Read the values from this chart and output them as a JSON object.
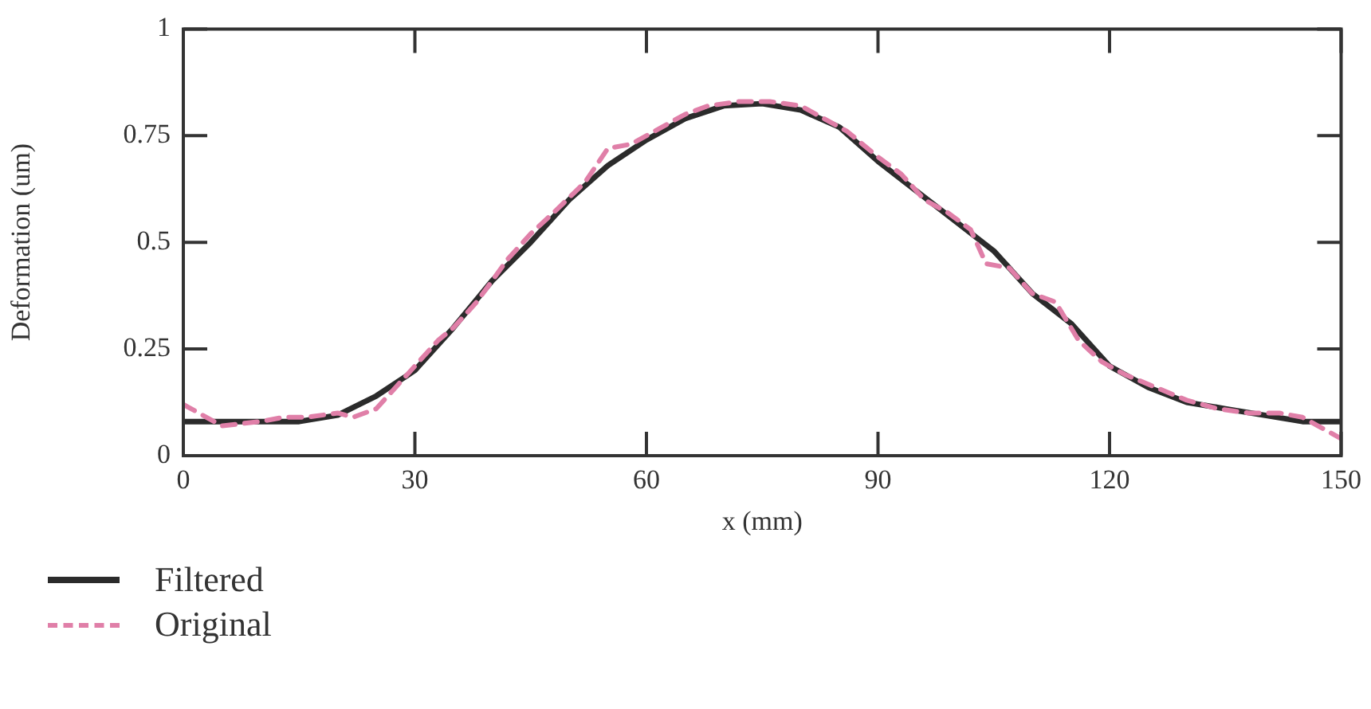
{
  "chart_data": {
    "type": "line",
    "xlabel": "x (mm)",
    "ylabel": "Deformation (um)",
    "xlim": [
      0,
      150
    ],
    "xticks": [
      0,
      30,
      60,
      90,
      120,
      150
    ],
    "ylim": [
      0,
      1
    ],
    "yticks": [
      0,
      0.25,
      0.5,
      0.75,
      1
    ],
    "grid": false,
    "legend": "bottom left",
    "marker": "none",
    "series": [
      {
        "name": "Filtered",
        "color": "#2b2b2b",
        "line_style": "solid",
        "x": [
          0,
          5,
          10,
          15,
          20,
          25,
          30,
          35,
          40,
          45,
          50,
          55,
          60,
          65,
          70,
          75,
          80,
          85,
          90,
          95,
          100,
          105,
          110,
          115,
          120,
          125,
          130,
          135,
          140,
          145,
          150
        ],
        "values": [
          0.08,
          0.08,
          0.08,
          0.08,
          0.095,
          0.14,
          0.2,
          0.3,
          0.41,
          0.5,
          0.6,
          0.68,
          0.74,
          0.79,
          0.82,
          0.825,
          0.81,
          0.77,
          0.69,
          0.62,
          0.55,
          0.48,
          0.38,
          0.31,
          0.21,
          0.16,
          0.125,
          0.11,
          0.095,
          0.08,
          0.08
        ]
      },
      {
        "name": "Original",
        "color": "#e07fa8",
        "line_style": "dashed",
        "x": [
          0,
          2,
          5,
          10,
          13,
          16,
          20,
          22,
          25,
          28,
          30,
          33,
          35,
          38,
          42,
          45,
          48,
          52,
          55,
          58,
          62,
          65,
          68,
          72,
          76,
          80,
          83,
          86,
          90,
          93,
          96,
          99,
          102,
          104,
          107,
          110,
          113,
          116,
          119,
          122,
          126,
          130,
          134,
          138,
          142,
          145,
          147,
          150
        ],
        "values": [
          0.12,
          0.1,
          0.07,
          0.08,
          0.09,
          0.09,
          0.1,
          0.09,
          0.11,
          0.17,
          0.21,
          0.27,
          0.3,
          0.36,
          0.46,
          0.52,
          0.57,
          0.64,
          0.72,
          0.73,
          0.77,
          0.8,
          0.82,
          0.83,
          0.83,
          0.82,
          0.79,
          0.76,
          0.7,
          0.66,
          0.6,
          0.57,
          0.53,
          0.45,
          0.44,
          0.38,
          0.36,
          0.27,
          0.22,
          0.19,
          0.16,
          0.13,
          0.11,
          0.1,
          0.1,
          0.09,
          0.07,
          0.04
        ]
      }
    ]
  }
}
